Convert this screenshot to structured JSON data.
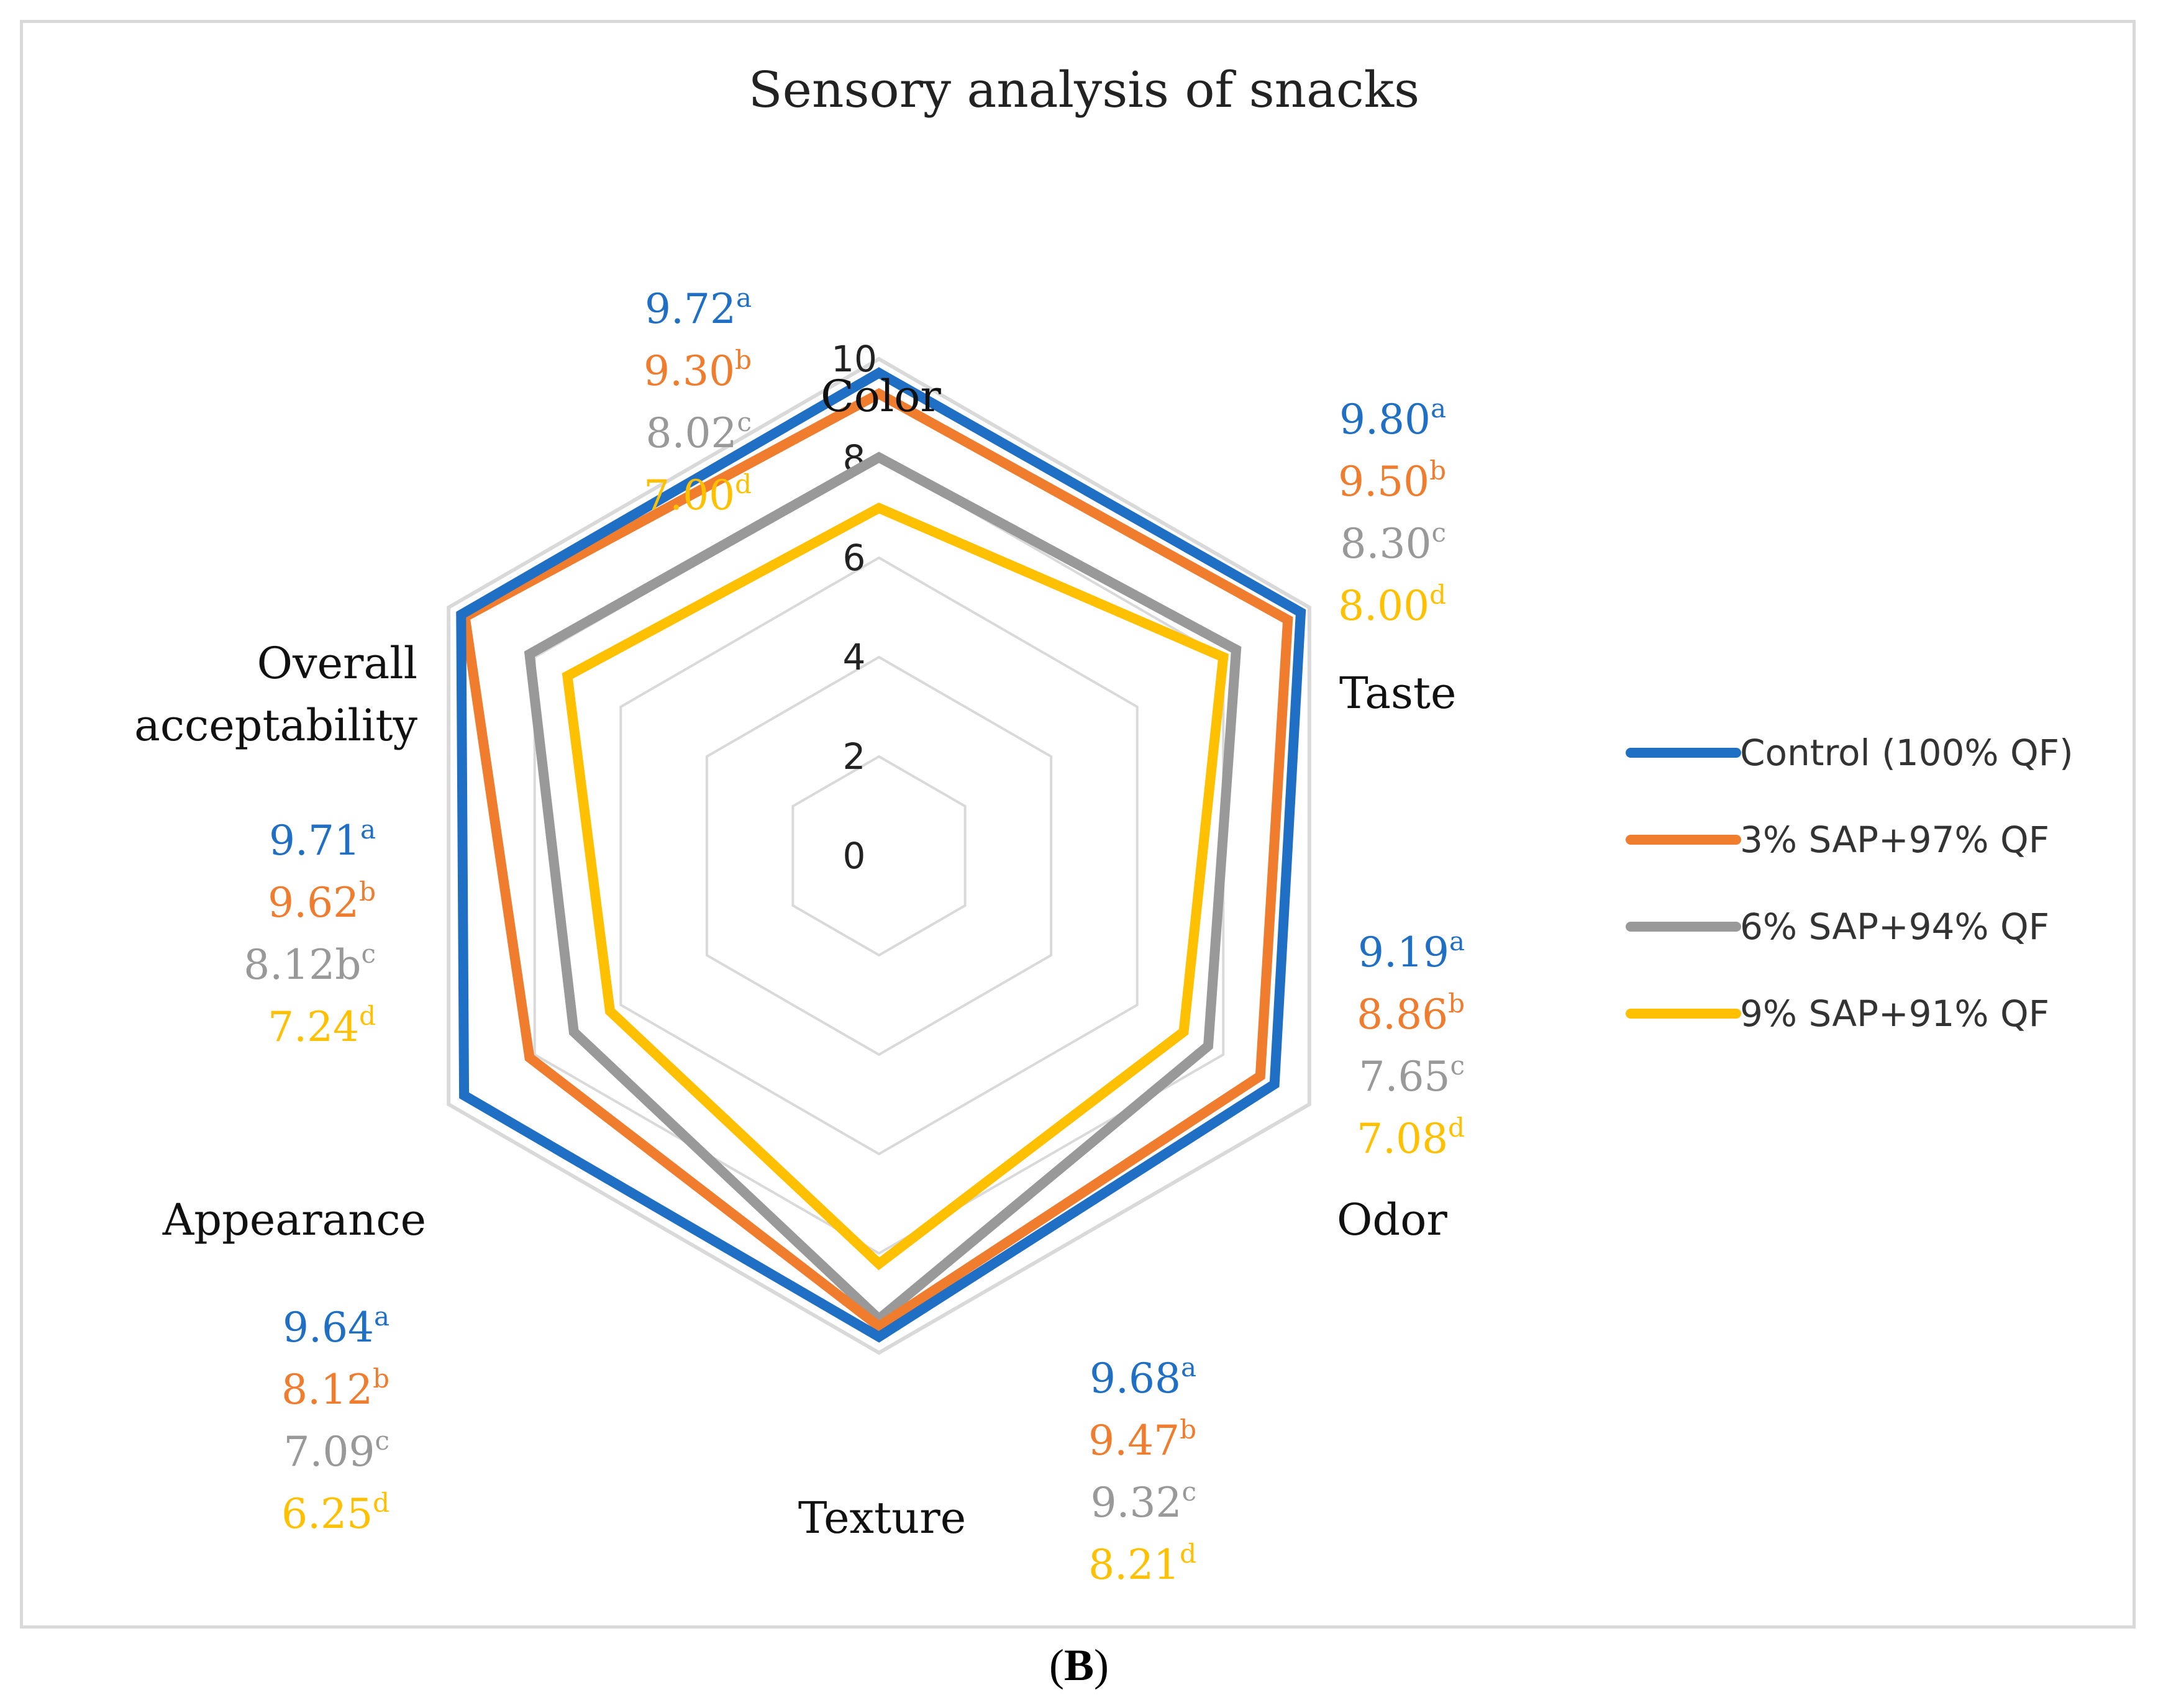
{
  "chart_data": {
    "type": "radar",
    "title": "Sensory analysis of snacks",
    "axes": [
      "Color",
      "Taste",
      "Odor",
      "Texture",
      "Appearance",
      "Overall acceptability"
    ],
    "axis_label_lines": [
      [
        "Color"
      ],
      [
        "Taste"
      ],
      [
        "Odor"
      ],
      [
        "Texture"
      ],
      [
        "Appearance"
      ],
      [
        "Overall",
        "acceptability"
      ]
    ],
    "rlim": [
      0,
      10
    ],
    "r_ticks": [
      0,
      2,
      4,
      6,
      8,
      10
    ],
    "legend_position": "right",
    "series": [
      {
        "name": "Control (100% QF)",
        "color": "#1f6fc5",
        "values": [
          9.72,
          9.8,
          9.19,
          9.68,
          9.64,
          9.71
        ],
        "letter": "a"
      },
      {
        "name": "3% SAP+97% QF",
        "color": "#f07c2e",
        "values": [
          9.3,
          9.5,
          8.86,
          9.47,
          8.12,
          9.62
        ],
        "letter": "b"
      },
      {
        "name": "6% SAP+94% QF",
        "color": "#999999",
        "values": [
          8.02,
          8.3,
          7.65,
          9.32,
          7.09,
          8.12
        ],
        "letter": "c"
      },
      {
        "name": "9% SAP+91% QF",
        "color": "#ffc000",
        "values": [
          7.0,
          8.0,
          7.08,
          8.21,
          6.25,
          7.24
        ],
        "letter": "d"
      }
    ],
    "annotations": [
      {
        "axis": "Color",
        "entries": [
          {
            "value": "9.72",
            "sup": "a"
          },
          {
            "value": "9.30",
            "sup": "b"
          },
          {
            "value": "8.02",
            "sup": "c"
          },
          {
            "value": "7.00",
            "sup": "d"
          }
        ]
      },
      {
        "axis": "Taste",
        "entries": [
          {
            "value": "9.80",
            "sup": "a"
          },
          {
            "value": "9.50",
            "sup": "b"
          },
          {
            "value": "8.30",
            "sup": "c"
          },
          {
            "value": "8.00",
            "sup": "d"
          }
        ]
      },
      {
        "axis": "Odor",
        "entries": [
          {
            "value": "9.19",
            "sup": "a"
          },
          {
            "value": "8.86",
            "sup": "b"
          },
          {
            "value": "7.65",
            "sup": "c"
          },
          {
            "value": "7.08",
            "sup": "d"
          }
        ]
      },
      {
        "axis": "Texture",
        "entries": [
          {
            "value": "9.68",
            "sup": "a"
          },
          {
            "value": "9.47",
            "sup": "b"
          },
          {
            "value": "9.32",
            "sup": "c"
          },
          {
            "value": "8.21",
            "sup": "d"
          }
        ]
      },
      {
        "axis": "Appearance",
        "entries": [
          {
            "value": "9.64",
            "sup": "a"
          },
          {
            "value": "8.12",
            "sup": "b"
          },
          {
            "value": "7.09",
            "sup": "c"
          },
          {
            "value": "6.25",
            "sup": "d"
          }
        ]
      },
      {
        "axis": "Overall acceptability",
        "entries": [
          {
            "value": "9.71",
            "sup": "a"
          },
          {
            "value": "9.62",
            "sup": "b"
          },
          {
            "value": "8.12b",
            "sup": "c"
          },
          {
            "value": "7.24",
            "sup": "d"
          }
        ]
      }
    ]
  },
  "caption": {
    "open": "(",
    "label": "B",
    "close": ")"
  }
}
